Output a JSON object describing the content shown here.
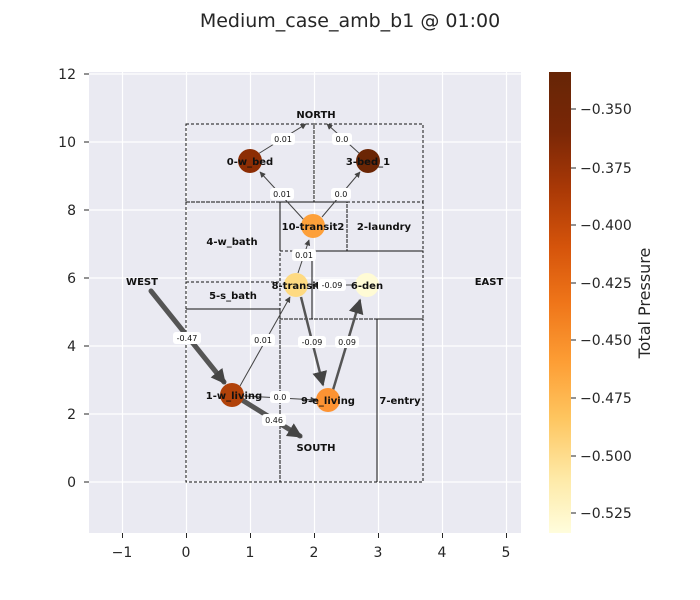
{
  "title": "Medium_case_amb_b1 @ 01:00",
  "axes": {
    "x_ticks": [
      "−1",
      "0",
      "1",
      "2",
      "3",
      "4",
      "5"
    ],
    "y_ticks": [
      "0",
      "2",
      "4",
      "6",
      "8",
      "10",
      "12"
    ]
  },
  "colorbar": {
    "label": "Total Pressure",
    "ticks": [
      "−0.350",
      "−0.375",
      "−0.400",
      "−0.425",
      "−0.450",
      "−0.475",
      "−0.500",
      "−0.525"
    ],
    "min": -0.535,
    "max": -0.34,
    "colors": [
      "#fffddc",
      "#fee9a6",
      "#fec55f",
      "#fd9e35",
      "#ef7519",
      "#d5540b",
      "#a83806",
      "#7a2706",
      "#662506"
    ]
  },
  "directions": {
    "north": "NORTH",
    "south": "SOUTH",
    "west": "WEST",
    "east": "EAST"
  },
  "rooms": [
    {
      "label": "4-w_bath"
    },
    {
      "label": "5-s_bath"
    },
    {
      "label": "2-laundry"
    },
    {
      "label": "7-entry"
    }
  ],
  "nodes": [
    {
      "label": "0-w_bed",
      "color": "#8c2d04"
    },
    {
      "label": "3-bed_1",
      "color": "#6b2605"
    },
    {
      "label": "10-transit2",
      "color": "#fda03a"
    },
    {
      "label": "8-transit",
      "color": "#feda82"
    },
    {
      "label": "6-den",
      "color": "#fffbd5"
    },
    {
      "label": "1-w_living",
      "color": "#b1420a"
    },
    {
      "label": "9-e_living",
      "color": "#fd9333"
    }
  ],
  "flows": [
    {
      "label": "0.01"
    },
    {
      "label": "0.0"
    },
    {
      "label": "0.01"
    },
    {
      "label": "0.0"
    },
    {
      "label": "0.01"
    },
    {
      "label": "-0.09"
    },
    {
      "label": "0.01"
    },
    {
      "label": "-0.09"
    },
    {
      "label": "0.09"
    },
    {
      "label": "-0.47"
    },
    {
      "label": "0.0"
    },
    {
      "label": "0.46"
    }
  ]
}
